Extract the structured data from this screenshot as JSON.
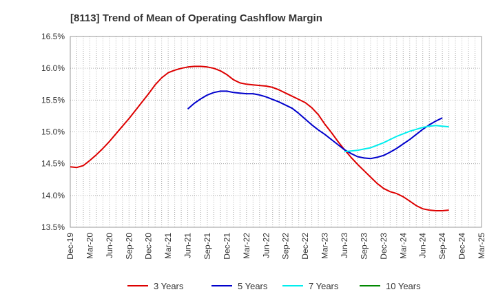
{
  "chart_data": {
    "type": "line",
    "title": "[8113]  Trend of Mean of Operating Cashflow Margin",
    "xlabel": "",
    "ylabel": "",
    "ylim": [
      13.5,
      16.5
    ],
    "yticks": [
      13.5,
      14.0,
      14.5,
      15.0,
      15.5,
      16.0,
      16.5
    ],
    "ytick_labels": [
      "13.5%",
      "14.0%",
      "14.5%",
      "15.0%",
      "15.5%",
      "16.0%",
      "16.5%"
    ],
    "xticks": [
      "Dec-19",
      "Mar-20",
      "Jun-20",
      "Sep-20",
      "Dec-20",
      "Mar-21",
      "Jun-21",
      "Sep-21",
      "Dec-21",
      "Mar-22",
      "Jun-22",
      "Sep-22",
      "Dec-22",
      "Mar-23",
      "Jun-23",
      "Sep-23",
      "Dec-23",
      "Mar-24",
      "Jun-24",
      "Sep-24",
      "Dec-24",
      "Mar-25"
    ],
    "grid": true,
    "legend_position": "bottom",
    "series": [
      {
        "name": "3 Years",
        "color": "#dd0000",
        "start_index": 0,
        "values": [
          14.45,
          14.44,
          14.47,
          14.55,
          14.64,
          14.74,
          14.85,
          14.97,
          15.09,
          15.21,
          15.34,
          15.47,
          15.6,
          15.74,
          15.85,
          15.93,
          15.97,
          16.0,
          16.02,
          16.03,
          16.03,
          16.02,
          16.0,
          15.96,
          15.9,
          15.82,
          15.77,
          15.75,
          15.74,
          15.73,
          15.72,
          15.7,
          15.66,
          15.61,
          15.56,
          15.51,
          15.46,
          15.38,
          15.27,
          15.12,
          14.99,
          14.85,
          14.72,
          14.6,
          14.49,
          14.39,
          14.29,
          14.19,
          14.11,
          14.06,
          14.03,
          13.98,
          13.91,
          13.84,
          13.79,
          13.77,
          13.76,
          13.76,
          13.77
        ]
      },
      {
        "name": "5 Years",
        "color": "#0000cc",
        "start_index": 18,
        "values": [
          15.36,
          15.45,
          15.52,
          15.58,
          15.62,
          15.64,
          15.64,
          15.62,
          15.61,
          15.6,
          15.6,
          15.58,
          15.55,
          15.51,
          15.47,
          15.42,
          15.37,
          15.29,
          15.2,
          15.11,
          15.03,
          14.96,
          14.88,
          14.8,
          14.72,
          14.66,
          14.61,
          14.59,
          14.58,
          14.6,
          14.63,
          14.68,
          14.74,
          14.81,
          14.88,
          14.96,
          15.04,
          15.11,
          15.17,
          15.22
        ]
      },
      {
        "name": "7 Years",
        "color": "#00eeee",
        "start_index": 42,
        "values": [
          14.69,
          14.7,
          14.71,
          14.73,
          14.75,
          14.79,
          14.83,
          14.88,
          14.93,
          14.97,
          15.01,
          15.04,
          15.07,
          15.09,
          15.1,
          15.09,
          15.08
        ]
      },
      {
        "name": "10 Years",
        "color": "#008800",
        "start_index": 0,
        "values": []
      }
    ]
  }
}
